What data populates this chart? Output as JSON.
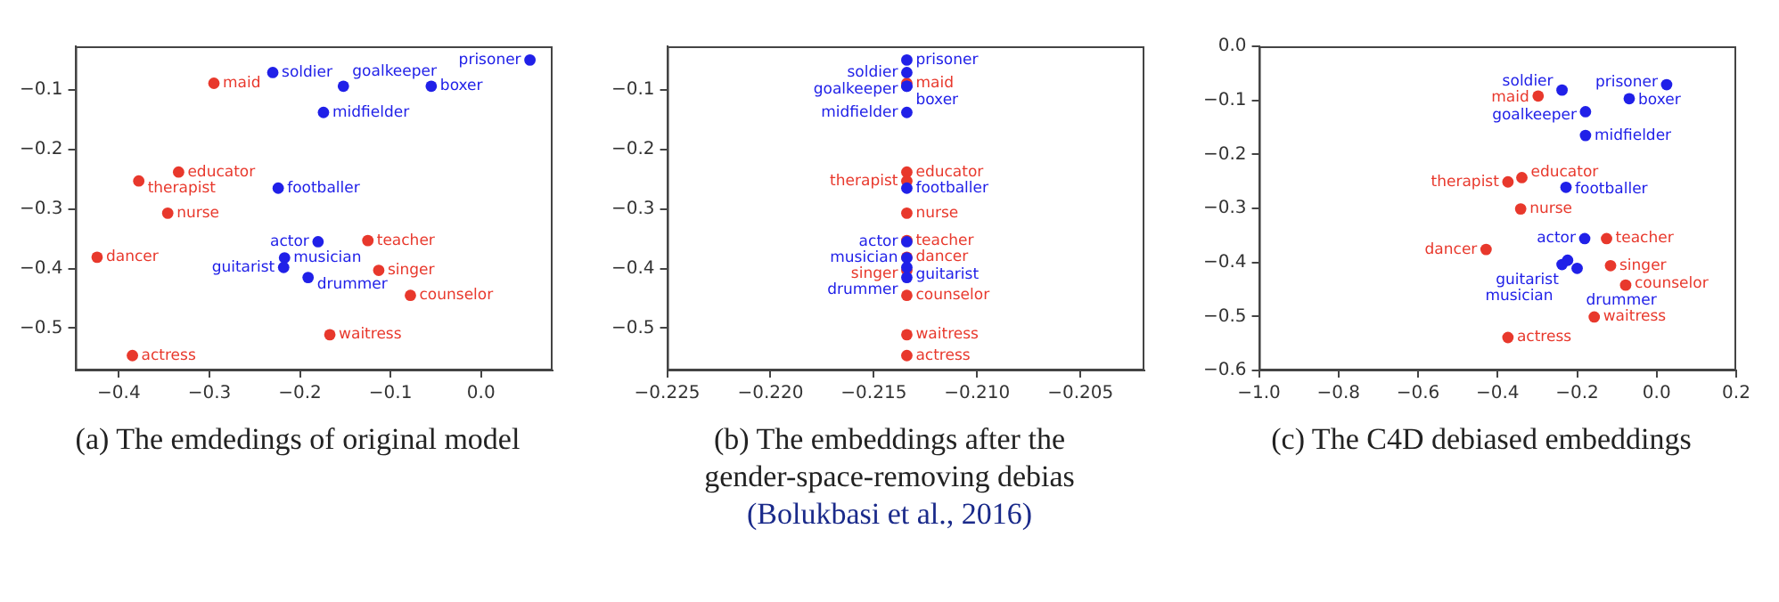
{
  "chart_data": [
    {
      "type": "scatter",
      "title": "(a) The emdedings of original model",
      "marker": "circle",
      "grid": false,
      "xlim": [
        -0.448,
        0.079
      ],
      "ylim": [
        -0.571,
        -0.027
      ],
      "xticks": [
        {
          "value": -0.4,
          "label": "−0.4"
        },
        {
          "value": -0.3,
          "label": "−0.3"
        },
        {
          "value": -0.2,
          "label": "−0.2"
        },
        {
          "value": -0.1,
          "label": "−0.1"
        },
        {
          "value": 0,
          "label": "0.0"
        }
      ],
      "yticks": [
        {
          "value": -0.1,
          "label": "−0.1"
        },
        {
          "value": -0.2,
          "label": "−0.2"
        },
        {
          "value": -0.3,
          "label": "−0.3"
        },
        {
          "value": -0.4,
          "label": "−0.4"
        },
        {
          "value": -0.5,
          "label": "−0.5"
        }
      ],
      "series": [
        {
          "color": "#2020e8",
          "x": [
            -0.23,
            -0.152,
            -0.055,
            0.054,
            -0.174,
            -0.224,
            -0.18,
            -0.217,
            -0.218,
            -0.191
          ],
          "values": [
            -0.071,
            -0.094,
            -0.094,
            -0.05,
            -0.138,
            -0.265,
            -0.355,
            -0.382,
            -0.398,
            -0.415
          ],
          "value_labels": [
            "soldier",
            "goalkeeper",
            "boxer",
            "prisoner",
            "midfielder",
            "footballer",
            "actor",
            "musician",
            "guitarist",
            "drummer"
          ]
        },
        {
          "color": "#e8382c",
          "x": [
            -0.295,
            -0.334,
            -0.378,
            -0.346,
            -0.424,
            -0.125,
            -0.113,
            -0.078,
            -0.167,
            -0.385
          ],
          "values": [
            -0.089,
            -0.238,
            -0.253,
            -0.307,
            -0.381,
            -0.353,
            -0.403,
            -0.445,
            -0.511,
            -0.546
          ],
          "value_labels": [
            "maid",
            "educator",
            "therapist",
            "nurse",
            "dancer",
            "teacher",
            "singer",
            "counselor",
            "waitress",
            "actress"
          ]
        }
      ]
    },
    {
      "type": "scatter",
      "title": "(b) The embeddings after the gender-space-removing debias",
      "subtitle": "(Bolukbasi et al., 2016)",
      "marker": "circle",
      "grid": false,
      "xlim": [
        -0.225,
        -0.2019
      ],
      "ylim": [
        -0.571,
        -0.027
      ],
      "xticks": [
        {
          "value": -0.225,
          "label": "−0.225"
        },
        {
          "value": -0.22,
          "label": "−0.220"
        },
        {
          "value": -0.215,
          "label": "−0.215"
        },
        {
          "value": -0.21,
          "label": "−0.210"
        },
        {
          "value": -0.205,
          "label": "−0.205"
        }
      ],
      "yticks": [
        {
          "value": -0.1,
          "label": "−0.1"
        },
        {
          "value": -0.2,
          "label": "−0.2"
        },
        {
          "value": -0.3,
          "label": "−0.3"
        },
        {
          "value": -0.4,
          "label": "−0.4"
        },
        {
          "value": -0.5,
          "label": "−0.5"
        }
      ],
      "series": [
        {
          "color": "#2020e8",
          "x": [
            -0.2134,
            -0.2134,
            -0.2134,
            -0.2134,
            -0.2134,
            -0.2134,
            -0.2134,
            -0.2134,
            -0.2134,
            -0.2134
          ],
          "values": [
            -0.071,
            -0.094,
            -0.094,
            -0.05,
            -0.138,
            -0.265,
            -0.355,
            -0.382,
            -0.398,
            -0.415
          ],
          "value_labels": [
            "soldier",
            "goalkeeper",
            "boxer",
            "prisoner",
            "midfielder",
            "footballer",
            "actor",
            "musician",
            "guitarist",
            "drummer"
          ]
        },
        {
          "color": "#e8382c",
          "x": [
            -0.2134,
            -0.2134,
            -0.2134,
            -0.2134,
            -0.2134,
            -0.2134,
            -0.2134,
            -0.2134,
            -0.2134,
            -0.2134
          ],
          "values": [
            -0.089,
            -0.238,
            -0.253,
            -0.307,
            -0.381,
            -0.353,
            -0.403,
            -0.445,
            -0.511,
            -0.546
          ],
          "value_labels": [
            "maid",
            "educator",
            "therapist",
            "nurse",
            "dancer",
            "teacher",
            "singer",
            "counselor",
            "waitress",
            "actress"
          ]
        }
      ]
    },
    {
      "type": "scatter",
      "title": "(c) The C4D debiased embeddings",
      "marker": "circle",
      "grid": false,
      "xlim": [
        -1.0,
        0.2
      ],
      "ylim": [
        -0.6,
        0.0
      ],
      "xticks": [
        {
          "value": -1.0,
          "label": "−1.0"
        },
        {
          "value": -0.8,
          "label": "−0.8"
        },
        {
          "value": -0.6,
          "label": "−0.6"
        },
        {
          "value": -0.4,
          "label": "−0.4"
        },
        {
          "value": -0.2,
          "label": "−0.2"
        },
        {
          "value": 0,
          "label": "0.0"
        },
        {
          "value": 0.2,
          "label": "0.2"
        }
      ],
      "yticks": [
        {
          "value": 0,
          "label": "0.0"
        },
        {
          "value": -0.1,
          "label": "−0.1"
        },
        {
          "value": -0.2,
          "label": "−0.2"
        },
        {
          "value": -0.3,
          "label": "−0.3"
        },
        {
          "value": -0.4,
          "label": "−0.4"
        },
        {
          "value": -0.5,
          "label": "−0.5"
        },
        {
          "value": -0.6,
          "label": "−0.6"
        }
      ],
      "series": [
        {
          "color": "#2020e8",
          "x": [
            -0.238,
            -0.179,
            -0.069,
            0.025,
            -0.179,
            -0.228,
            -0.181,
            -0.238,
            -0.224,
            -0.2
          ],
          "values": [
            -0.081,
            -0.121,
            -0.097,
            -0.071,
            -0.165,
            -0.261,
            -0.356,
            -0.404,
            -0.396,
            -0.411
          ],
          "value_labels": [
            "soldier",
            "goalkeeper",
            "boxer",
            "prisoner",
            "midfielder",
            "footballer",
            "actor",
            "musician",
            "guitarist",
            "drummer"
          ]
        },
        {
          "color": "#e8382c",
          "x": [
            -0.298,
            -0.339,
            -0.374,
            -0.342,
            -0.429,
            -0.126,
            -0.116,
            -0.078,
            -0.157,
            -0.374
          ],
          "values": [
            -0.092,
            -0.243,
            -0.251,
            -0.301,
            -0.376,
            -0.356,
            -0.406,
            -0.442,
            -0.501,
            -0.539
          ],
          "value_labels": [
            "maid",
            "educator",
            "therapist",
            "nurse",
            "dancer",
            "teacher",
            "singer",
            "counselor",
            "waitress",
            "actress"
          ]
        }
      ]
    }
  ]
}
